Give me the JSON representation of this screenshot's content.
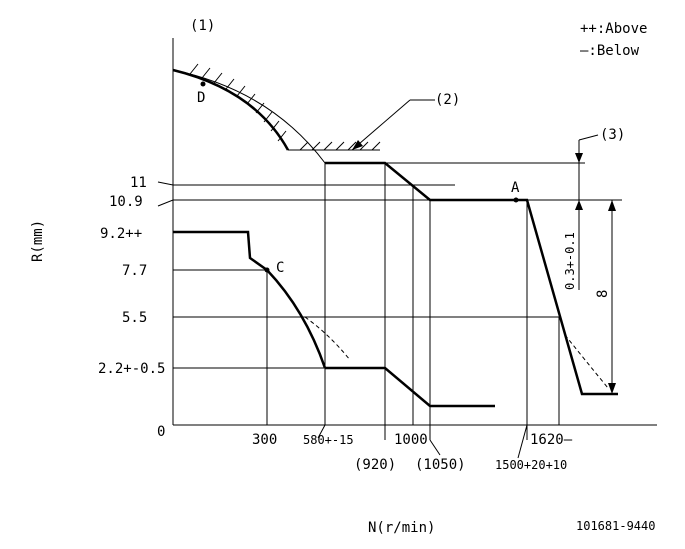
{
  "labels": {
    "ref1": "(1)",
    "ref2": "(2)",
    "ref3": "(3)",
    "legend_above": "++:Above",
    "legend_below": "—:Below",
    "y_axis": "R(mm)",
    "x_axis": "N(r/min)",
    "figure_id": "101681-9440",
    "point_a": "A",
    "point_c": "C",
    "point_d": "D",
    "dim_small": "0.3+-0.1",
    "dim_large": "8"
  },
  "y_ticks": [
    "11",
    "10.9",
    "9.2++",
    "7.7",
    "5.5",
    "2.2+-0.5",
    "0"
  ],
  "x_ticks": [
    "300",
    "580+-15",
    "(920)",
    "1000",
    "(1050)",
    "1620—",
    "1500+20+10"
  ]
}
